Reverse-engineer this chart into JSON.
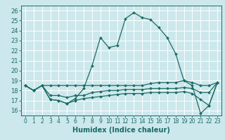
{
  "xlabel": "Humidex (Indice chaleur)",
  "bg_color": "#cce8ec",
  "line_color": "#1a6b65",
  "xlim": [
    -0.5,
    23.5
  ],
  "ylim": [
    15.5,
    26.5
  ],
  "yticks": [
    16,
    17,
    18,
    19,
    20,
    21,
    22,
    23,
    24,
    25,
    26
  ],
  "xticks": [
    0,
    1,
    2,
    3,
    4,
    5,
    6,
    7,
    8,
    9,
    10,
    11,
    12,
    13,
    14,
    15,
    16,
    17,
    18,
    19,
    20,
    21,
    22,
    23
  ],
  "lines": [
    {
      "x": [
        0,
        1,
        2,
        3,
        4,
        5,
        6,
        7,
        8,
        9,
        10,
        11,
        12,
        13,
        14,
        15,
        16,
        17,
        18,
        19,
        20,
        21,
        22,
        23
      ],
      "y": [
        18.5,
        18.0,
        18.5,
        17.1,
        17.0,
        16.7,
        17.2,
        18.2,
        20.5,
        23.3,
        22.3,
        22.5,
        25.2,
        25.8,
        25.3,
        25.1,
        24.3,
        23.3,
        21.7,
        19.0,
        18.5,
        15.7,
        16.5,
        18.8
      ]
    },
    {
      "x": [
        0,
        1,
        2,
        3,
        4,
        5,
        6,
        7,
        8,
        9,
        10,
        11,
        12,
        13,
        14,
        15,
        16,
        17,
        18,
        19,
        20,
        21,
        22,
        23
      ],
      "y": [
        18.5,
        18.0,
        18.5,
        18.5,
        18.5,
        18.5,
        18.5,
        18.5,
        18.5,
        18.5,
        18.5,
        18.5,
        18.5,
        18.5,
        18.5,
        18.7,
        18.8,
        18.8,
        18.8,
        19.0,
        18.8,
        18.5,
        18.5,
        18.8
      ]
    },
    {
      "x": [
        0,
        1,
        2,
        3,
        4,
        5,
        6,
        7,
        8,
        9,
        10,
        11,
        12,
        13,
        14,
        15,
        16,
        17,
        18,
        19,
        20,
        21,
        22,
        23
      ],
      "y": [
        18.5,
        18.0,
        18.5,
        17.5,
        17.5,
        17.3,
        17.5,
        17.5,
        17.8,
        17.9,
        18.0,
        18.0,
        18.1,
        18.1,
        18.1,
        18.2,
        18.2,
        18.2,
        18.2,
        18.3,
        18.2,
        17.8,
        17.8,
        18.8
      ]
    },
    {
      "x": [
        0,
        1,
        2,
        3,
        4,
        5,
        6,
        7,
        8,
        9,
        10,
        11,
        12,
        13,
        14,
        15,
        16,
        17,
        18,
        19,
        20,
        21,
        22,
        23
      ],
      "y": [
        18.5,
        18.0,
        18.5,
        17.1,
        17.0,
        16.7,
        17.0,
        17.2,
        17.3,
        17.4,
        17.5,
        17.6,
        17.7,
        17.7,
        17.7,
        17.8,
        17.8,
        17.8,
        17.8,
        17.9,
        17.7,
        17.1,
        16.5,
        18.8
      ]
    }
  ]
}
